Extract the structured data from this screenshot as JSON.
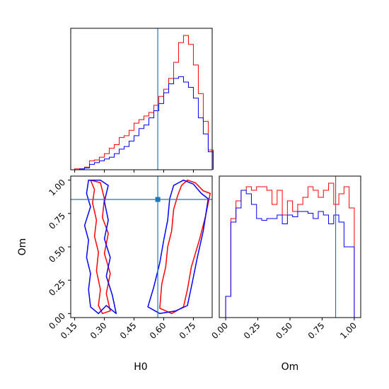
{
  "colors": {
    "series_a": "#ff0000",
    "series_b": "#0000ff",
    "truth": "#1f77b4"
  },
  "chart_data": [
    {
      "type": "histogram",
      "panel": "H0 marginal",
      "bin_edges": [
        0.15,
        0.175,
        0.2,
        0.225,
        0.25,
        0.275,
        0.3,
        0.325,
        0.35,
        0.375,
        0.4,
        0.425,
        0.45,
        0.475,
        0.5,
        0.525,
        0.55,
        0.575,
        0.6,
        0.625,
        0.65,
        0.675,
        0.7,
        0.725,
        0.75,
        0.775,
        0.8,
        0.825,
        0.85
      ],
      "series": [
        {
          "color": "series_a",
          "values": [
            1,
            1,
            3,
            10,
            11,
            14,
            18,
            24,
            28,
            36,
            38,
            44,
            52,
            56,
            60,
            64,
            72,
            82,
            90,
            102,
            120,
            142,
            150,
            140,
            117,
            85,
            54,
            22
          ]
        },
        {
          "color": "series_b",
          "values": [
            0,
            1,
            2,
            6,
            8,
            10,
            12,
            14,
            18,
            23,
            26,
            32,
            38,
            46,
            50,
            58,
            66,
            74,
            86,
            96,
            102,
            104,
            98,
            92,
            80,
            58,
            40,
            20
          ]
        }
      ],
      "truth_x": 0.57,
      "xlim": [
        0.13,
        0.845
      ],
      "show_ticklabels": false
    },
    {
      "type": "contour",
      "panel": "H0 vs Om joint",
      "xlabel": "H0",
      "ylabel": "Om",
      "xlim": [
        0.13,
        0.845
      ],
      "ylim": [
        -0.03,
        1.03
      ],
      "xticks": [
        "0.15",
        "0.30",
        "0.45",
        "0.60",
        "0.75"
      ],
      "xtick_values": [
        0.15,
        0.3,
        0.45,
        0.6,
        0.75
      ],
      "yticks": [
        "0.00",
        "0.25",
        "0.50",
        "0.75",
        "1.00"
      ],
      "ytick_values": [
        0.0,
        0.25,
        0.5,
        0.75,
        1.0
      ],
      "truth": [
        0.57,
        0.855
      ],
      "contours": [
        {
          "color": "series_a",
          "points": [
            [
              0.23,
              1.0
            ],
            [
              0.25,
              0.93
            ],
            [
              0.24,
              0.83
            ],
            [
              0.26,
              0.7
            ],
            [
              0.25,
              0.58
            ],
            [
              0.27,
              0.46
            ],
            [
              0.26,
              0.32
            ],
            [
              0.28,
              0.18
            ],
            [
              0.27,
              0.06
            ],
            [
              0.29,
              0.0
            ],
            [
              0.33,
              0.02
            ],
            [
              0.31,
              0.15
            ],
            [
              0.33,
              0.3
            ],
            [
              0.3,
              0.45
            ],
            [
              0.32,
              0.6
            ],
            [
              0.29,
              0.72
            ],
            [
              0.3,
              0.86
            ],
            [
              0.28,
              0.98
            ]
          ]
        },
        {
          "color": "series_a",
          "points": [
            [
              0.58,
              0.04
            ],
            [
              0.59,
              0.22
            ],
            [
              0.61,
              0.35
            ],
            [
              0.62,
              0.5
            ],
            [
              0.64,
              0.62
            ],
            [
              0.65,
              0.78
            ],
            [
              0.67,
              0.88
            ],
            [
              0.69,
              0.96
            ],
            [
              0.72,
              1.0
            ],
            [
              0.76,
              0.98
            ],
            [
              0.8,
              0.92
            ],
            [
              0.835,
              0.9
            ],
            [
              0.81,
              0.72
            ],
            [
              0.78,
              0.55
            ],
            [
              0.74,
              0.35
            ],
            [
              0.72,
              0.18
            ],
            [
              0.7,
              0.05
            ],
            [
              0.64,
              0.0
            ]
          ]
        },
        {
          "color": "series_b",
          "points": [
            [
              0.22,
              1.0
            ],
            [
              0.21,
              0.9
            ],
            [
              0.23,
              0.8
            ],
            [
              0.2,
              0.66
            ],
            [
              0.22,
              0.55
            ],
            [
              0.21,
              0.42
            ],
            [
              0.23,
              0.3
            ],
            [
              0.22,
              0.18
            ],
            [
              0.23,
              0.05
            ],
            [
              0.27,
              0.0
            ],
            [
              0.31,
              0.06
            ],
            [
              0.36,
              0.0
            ],
            [
              0.34,
              0.14
            ],
            [
              0.31,
              0.28
            ],
            [
              0.33,
              0.42
            ],
            [
              0.3,
              0.56
            ],
            [
              0.32,
              0.7
            ],
            [
              0.3,
              0.84
            ],
            [
              0.32,
              0.96
            ],
            [
              0.28,
              1.0
            ]
          ]
        },
        {
          "color": "series_b",
          "points": [
            [
              0.52,
              0.05
            ],
            [
              0.55,
              0.2
            ],
            [
              0.58,
              0.38
            ],
            [
              0.6,
              0.55
            ],
            [
              0.62,
              0.7
            ],
            [
              0.63,
              0.86
            ],
            [
              0.65,
              0.96
            ],
            [
              0.7,
              1.0
            ],
            [
              0.75,
              0.97
            ],
            [
              0.79,
              0.9
            ],
            [
              0.825,
              0.86
            ],
            [
              0.8,
              0.62
            ],
            [
              0.77,
              0.42
            ],
            [
              0.74,
              0.2
            ],
            [
              0.72,
              0.06
            ],
            [
              0.66,
              0.02
            ],
            [
              0.58,
              0.0
            ]
          ]
        }
      ]
    },
    {
      "type": "histogram",
      "panel": "Om marginal",
      "xlabel": "Om",
      "bin_edges": [
        0.0,
        0.04,
        0.08,
        0.12,
        0.16,
        0.2,
        0.24,
        0.28,
        0.32,
        0.36,
        0.4,
        0.44,
        0.48,
        0.52,
        0.56,
        0.6,
        0.64,
        0.68,
        0.72,
        0.76,
        0.8,
        0.84,
        0.88,
        0.92,
        0.96,
        1.0
      ],
      "series": [
        {
          "color": "series_a",
          "values": [
            12,
            56,
            66,
            72,
            74,
            72,
            74,
            74,
            72,
            64,
            72,
            58,
            66,
            60,
            64,
            68,
            74,
            72,
            68,
            72,
            76,
            64,
            70,
            74,
            62
          ]
        },
        {
          "color": "series_b",
          "values": [
            12,
            54,
            62,
            72,
            70,
            64,
            56,
            55,
            56,
            56,
            58,
            53,
            58,
            57,
            60,
            60,
            59,
            56,
            60,
            58,
            53,
            58,
            54,
            40,
            40
          ]
        }
      ],
      "truth_x": 0.855,
      "xlim": [
        -0.05,
        1.05
      ],
      "xticks": [
        "0.00",
        "0.25",
        "0.50",
        "0.75",
        "1.00"
      ],
      "xtick_values": [
        0.0,
        0.25,
        0.5,
        0.75,
        1.0
      ]
    }
  ]
}
